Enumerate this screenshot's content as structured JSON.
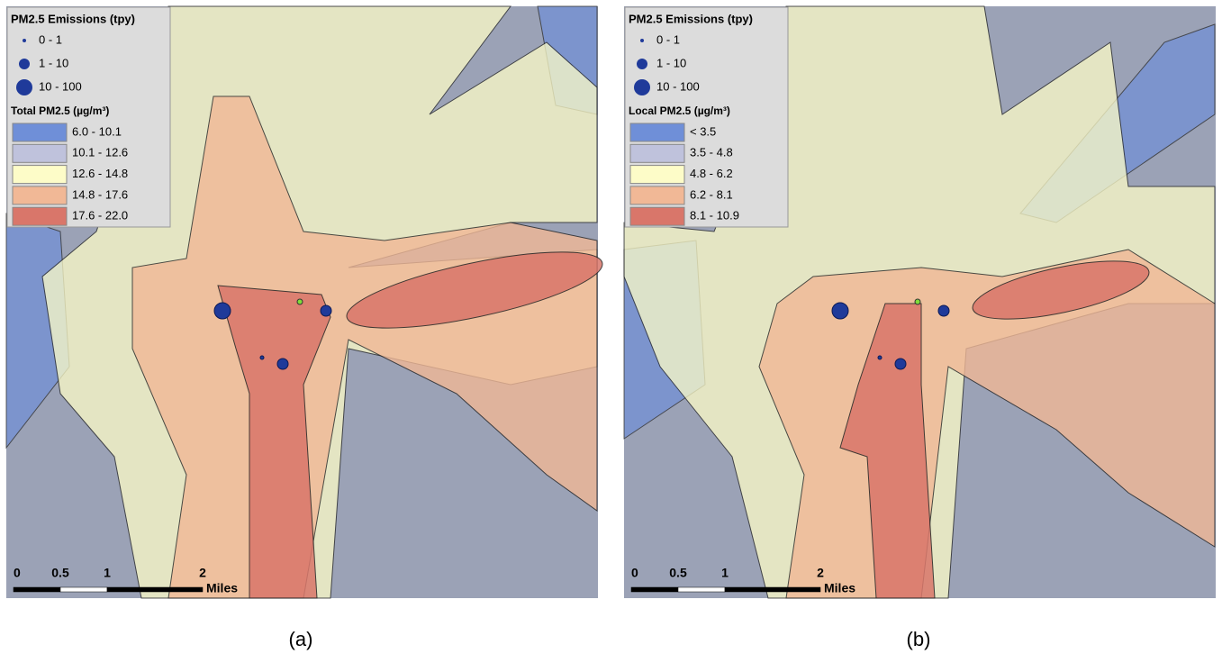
{
  "panels": [
    {
      "legend": {
        "emissions_title": "PM2.5 Emissions (tpy)",
        "emission_classes": [
          "0 - 1",
          "1 - 10",
          "10 - 100"
        ],
        "concentration_title": "Total PM2.5 (µg/m³)",
        "concentration_classes": [
          {
            "label": "6.0 - 10.1",
            "color": "#6f8fd8"
          },
          {
            "label": "10.1 - 12.6",
            "color": "#bfc2dc"
          },
          {
            "label": "12.6 - 14.8",
            "color": "#fdfcc8"
          },
          {
            "label": "14.8 - 17.6",
            "color": "#f1b896"
          },
          {
            "label": "17.6 - 22.0",
            "color": "#d9766a"
          }
        ]
      },
      "scale": {
        "ticks": [
          "0",
          "0.5",
          "1",
          "2"
        ],
        "unit": "Miles"
      },
      "caption": "(a)"
    },
    {
      "legend": {
        "emissions_title": "PM2.5 Emissions (tpy)",
        "emission_classes": [
          "0 - 1",
          "1 - 10",
          "10 - 100"
        ],
        "concentration_title": "Local PM2.5 (µg/m³)",
        "concentration_classes": [
          {
            "label": "< 3.5",
            "color": "#6f8fd8"
          },
          {
            "label": "3.5 - 4.8",
            "color": "#bfc2dc"
          },
          {
            "label": "4.8 - 6.2",
            "color": "#fdfcc8"
          },
          {
            "label": "6.2 - 8.1",
            "color": "#f1b896"
          },
          {
            "label": "8.1 - 10.9",
            "color": "#d9766a"
          }
        ]
      },
      "scale": {
        "ticks": [
          "0",
          "0.5",
          "1",
          "2"
        ],
        "unit": "Miles"
      },
      "caption": "(b)"
    }
  ]
}
